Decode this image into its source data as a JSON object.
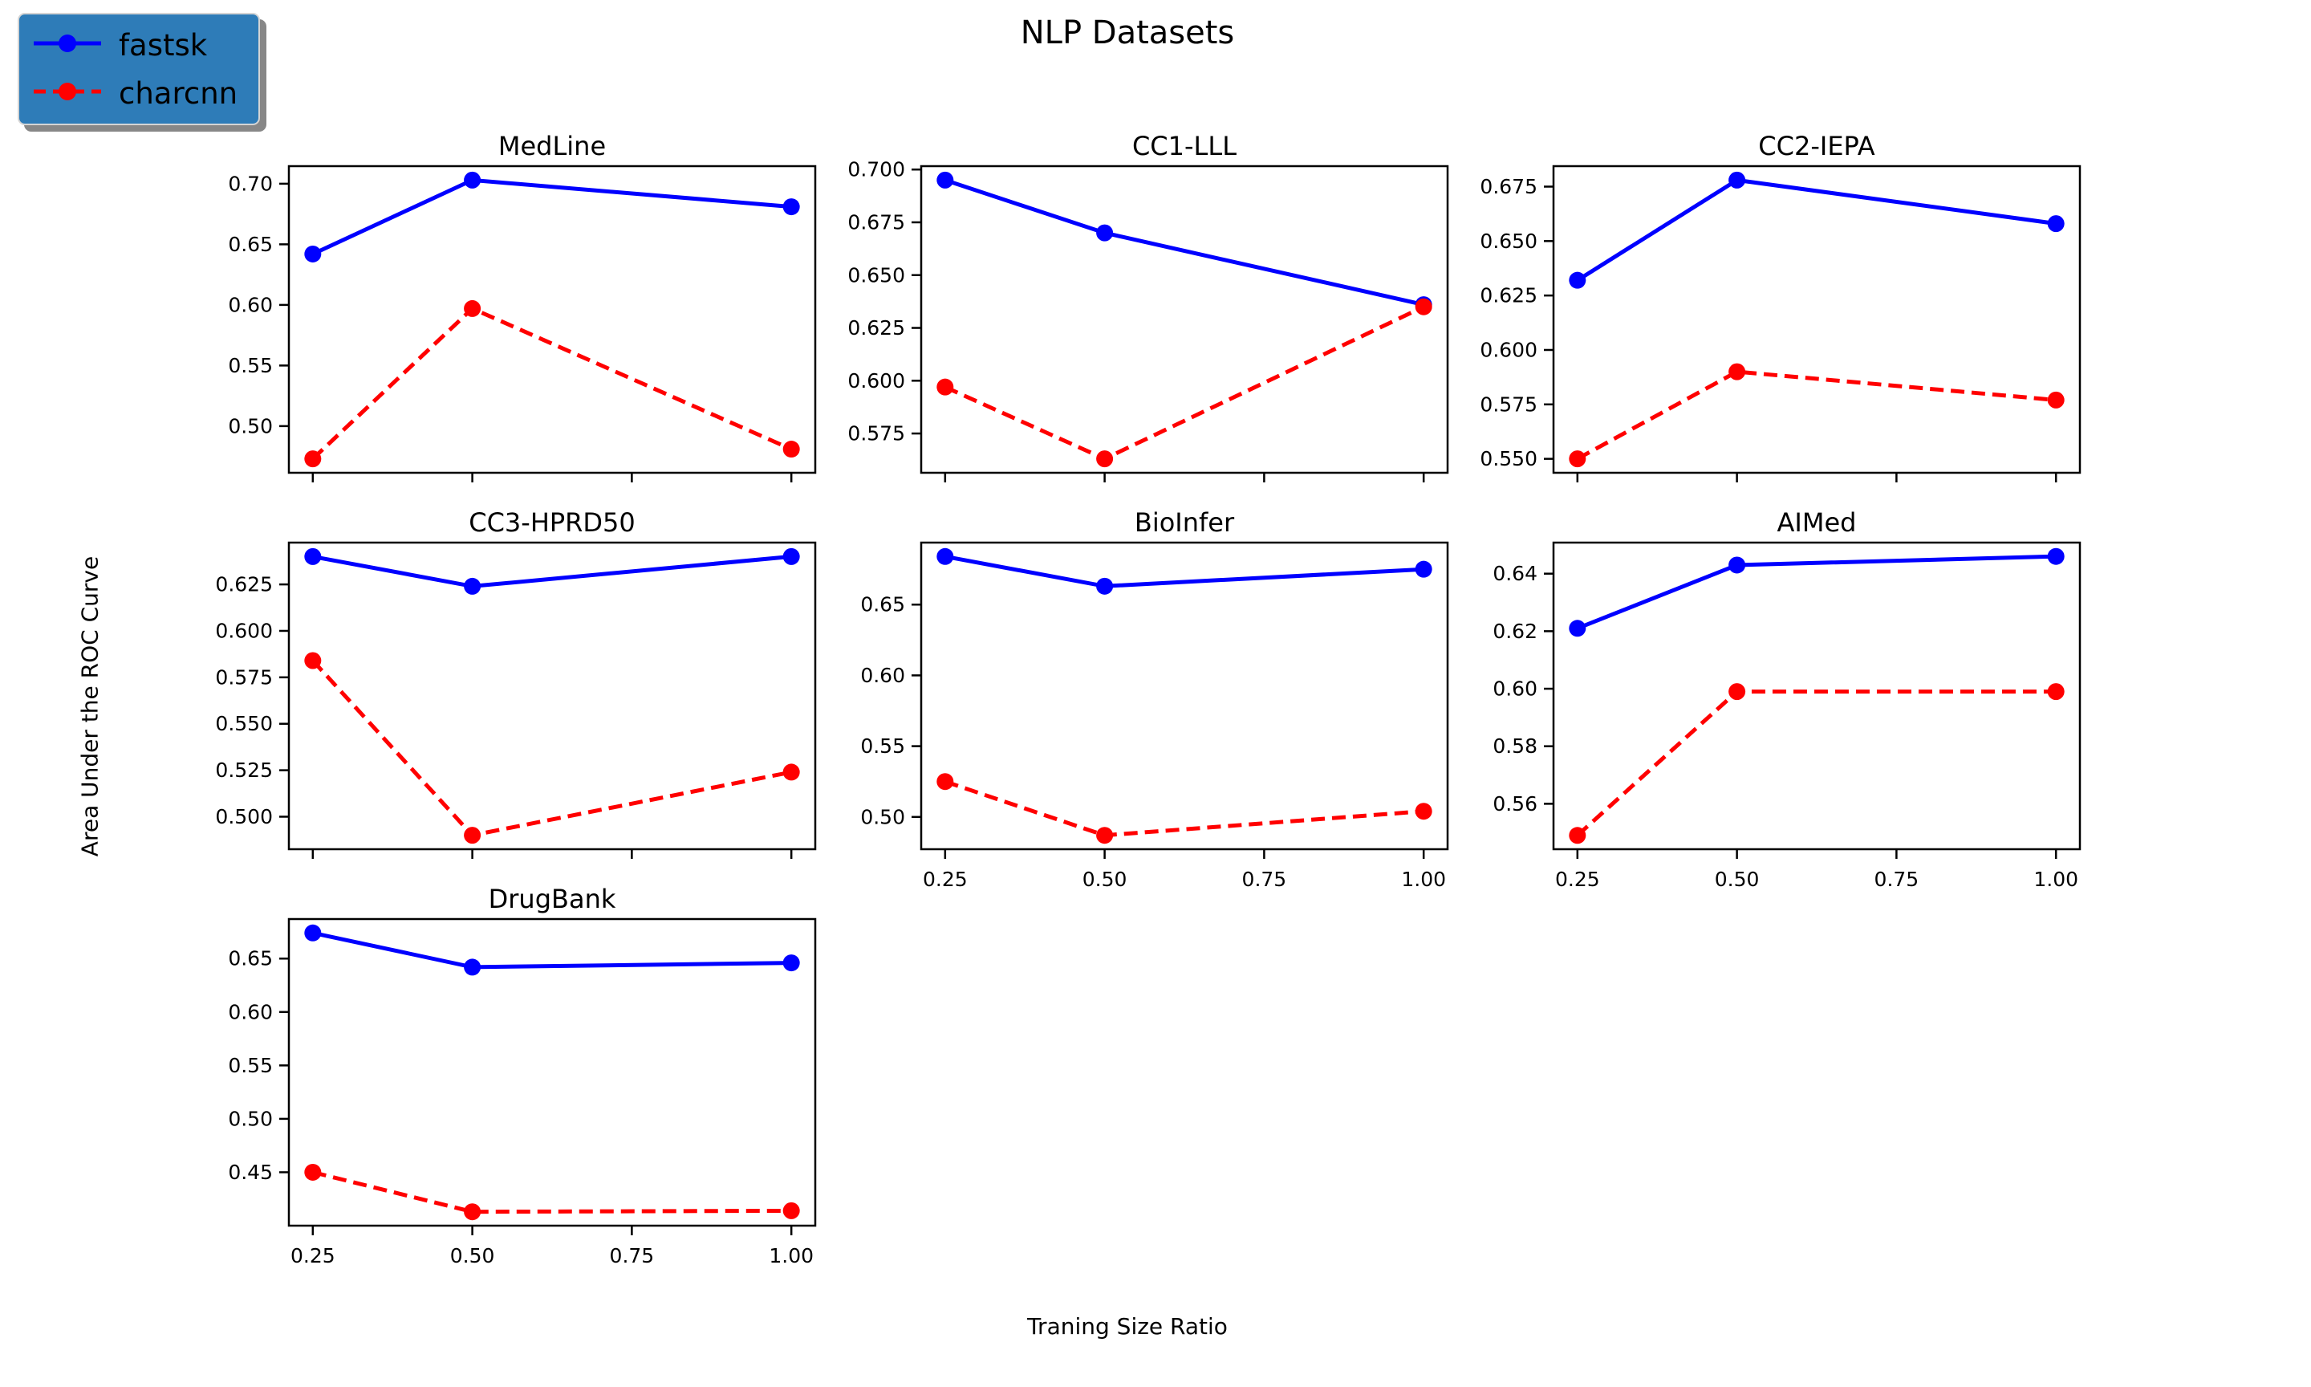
{
  "figure": {
    "title": "NLP Datasets",
    "xlabel": "Traning Size Ratio",
    "ylabel": "Area Under the ROC Curve",
    "colors": {
      "fastsk": "#0000ff",
      "charcnn": "#ff0000",
      "legend_bg": "#2e7cb8",
      "legend_border": "#d4d4d4",
      "axes_frame": "#000000"
    }
  },
  "legend": {
    "items": [
      {
        "label": "fastsk",
        "color": "#0000ff",
        "style": "solid"
      },
      {
        "label": "charcnn",
        "color": "#ff0000",
        "style": "dashed"
      }
    ]
  },
  "chart_data": [
    {
      "type": "line",
      "title": "MedLine",
      "grid": {
        "row": 0,
        "col": 0
      },
      "x": [
        0.25,
        0.5,
        1.0
      ],
      "series": [
        {
          "name": "fastsk",
          "style": "solid",
          "values": [
            0.642,
            0.703,
            0.681
          ]
        },
        {
          "name": "charcnn",
          "style": "dashed",
          "values": [
            0.473,
            0.597,
            0.481
          ]
        }
      ],
      "xlim": [
        0.2125,
        1.0375
      ],
      "xticks": [
        0.25,
        0.5,
        0.75,
        1.0
      ],
      "ylim": [
        0.4615,
        0.7145
      ],
      "yticks": [
        0.5,
        0.55,
        0.6,
        0.65,
        0.7
      ],
      "ytick_decimals": 2,
      "show_xticklabels": false,
      "grid_lines": false
    },
    {
      "type": "line",
      "title": "CC1-LLL",
      "grid": {
        "row": 0,
        "col": 1
      },
      "x": [
        0.25,
        0.5,
        1.0
      ],
      "series": [
        {
          "name": "fastsk",
          "style": "solid",
          "values": [
            0.695,
            0.67,
            0.636
          ]
        },
        {
          "name": "charcnn",
          "style": "dashed",
          "values": [
            0.597,
            0.563,
            0.635
          ]
        }
      ],
      "xlim": [
        0.2125,
        1.0375
      ],
      "xticks": [
        0.25,
        0.5,
        0.75,
        1.0
      ],
      "ylim": [
        0.5564,
        0.7016
      ],
      "yticks": [
        0.575,
        0.6,
        0.625,
        0.65,
        0.675,
        0.7
      ],
      "ytick_decimals": 3,
      "show_xticklabels": false,
      "grid_lines": false
    },
    {
      "type": "line",
      "title": "CC2-IEPA",
      "grid": {
        "row": 0,
        "col": 2
      },
      "x": [
        0.25,
        0.5,
        1.0
      ],
      "series": [
        {
          "name": "fastsk",
          "style": "solid",
          "values": [
            0.632,
            0.678,
            0.658
          ]
        },
        {
          "name": "charcnn",
          "style": "dashed",
          "values": [
            0.55,
            0.59,
            0.577
          ]
        }
      ],
      "xlim": [
        0.2125,
        1.0375
      ],
      "xticks": [
        0.25,
        0.5,
        0.75,
        1.0
      ],
      "ylim": [
        0.5436,
        0.6844
      ],
      "yticks": [
        0.55,
        0.575,
        0.6,
        0.625,
        0.65,
        0.675
      ],
      "ytick_decimals": 3,
      "show_xticklabels": false,
      "grid_lines": false
    },
    {
      "type": "line",
      "title": "CC3-HPRD50",
      "grid": {
        "row": 1,
        "col": 0
      },
      "x": [
        0.25,
        0.5,
        1.0
      ],
      "series": [
        {
          "name": "fastsk",
          "style": "solid",
          "values": [
            0.64,
            0.624,
            0.64
          ]
        },
        {
          "name": "charcnn",
          "style": "dashed",
          "values": [
            0.584,
            0.49,
            0.524
          ]
        }
      ],
      "xlim": [
        0.2125,
        1.0375
      ],
      "xticks": [
        0.25,
        0.5,
        0.75,
        1.0
      ],
      "ylim": [
        0.4825,
        0.6475
      ],
      "yticks": [
        0.5,
        0.525,
        0.55,
        0.575,
        0.6,
        0.625
      ],
      "ytick_decimals": 3,
      "show_xticklabels": false,
      "grid_lines": false
    },
    {
      "type": "line",
      "title": "BioInfer",
      "grid": {
        "row": 1,
        "col": 1
      },
      "x": [
        0.25,
        0.5,
        1.0
      ],
      "series": [
        {
          "name": "fastsk",
          "style": "solid",
          "values": [
            0.684,
            0.663,
            0.675
          ]
        },
        {
          "name": "charcnn",
          "style": "dashed",
          "values": [
            0.525,
            0.487,
            0.504
          ]
        }
      ],
      "xlim": [
        0.2125,
        1.0375
      ],
      "xticks": [
        0.25,
        0.5,
        0.75,
        1.0
      ],
      "ylim": [
        0.4772,
        0.6938
      ],
      "yticks": [
        0.5,
        0.55,
        0.6,
        0.65
      ],
      "ytick_decimals": 2,
      "show_xticklabels": true,
      "grid_lines": false
    },
    {
      "type": "line",
      "title": "AIMed",
      "grid": {
        "row": 1,
        "col": 2
      },
      "x": [
        0.25,
        0.5,
        1.0
      ],
      "series": [
        {
          "name": "fastsk",
          "style": "solid",
          "values": [
            0.621,
            0.643,
            0.646
          ]
        },
        {
          "name": "charcnn",
          "style": "dashed",
          "values": [
            0.549,
            0.599,
            0.599
          ]
        }
      ],
      "xlim": [
        0.2125,
        1.0375
      ],
      "xticks": [
        0.25,
        0.5,
        0.75,
        1.0
      ],
      "ylim": [
        0.5442,
        0.6508
      ],
      "yticks": [
        0.56,
        0.58,
        0.6,
        0.62,
        0.64
      ],
      "ytick_decimals": 2,
      "show_xticklabels": true,
      "grid_lines": false
    },
    {
      "type": "line",
      "title": "DrugBank",
      "grid": {
        "row": 2,
        "col": 0
      },
      "x": [
        0.25,
        0.5,
        1.0
      ],
      "series": [
        {
          "name": "fastsk",
          "style": "solid",
          "values": [
            0.674,
            0.642,
            0.646
          ]
        },
        {
          "name": "charcnn",
          "style": "dashed",
          "values": [
            0.45,
            0.413,
            0.414
          ]
        }
      ],
      "xlim": [
        0.2125,
        1.0375
      ],
      "xticks": [
        0.25,
        0.5,
        0.75,
        1.0
      ],
      "ylim": [
        0.4,
        0.687
      ],
      "yticks": [
        0.45,
        0.5,
        0.55,
        0.6,
        0.65
      ],
      "ytick_decimals": 2,
      "show_xticklabels": true,
      "grid_lines": false
    }
  ]
}
